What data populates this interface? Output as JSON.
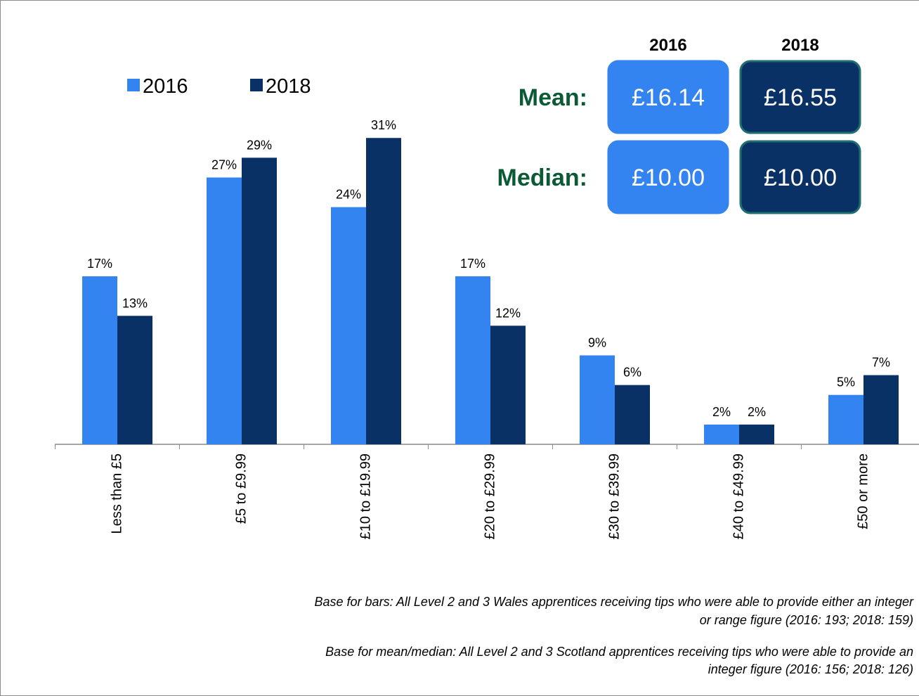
{
  "chart_data": {
    "type": "bar",
    "categories": [
      "Less than £5",
      "£5 to £9.99",
      "£10 to £19.99",
      "£20 to £29.99",
      "£30 to £39.99",
      "£40 to £49.99",
      "£50 or more"
    ],
    "series": [
      {
        "name": "2016",
        "color": "#3383f0",
        "values": [
          17,
          27,
          24,
          17,
          9,
          2,
          5
        ],
        "value_labels": [
          "17%",
          "27%",
          "24%",
          "17%",
          "9%",
          "2%",
          "5%"
        ]
      },
      {
        "name": "2018",
        "color": "#0a3166",
        "values": [
          13,
          29,
          31,
          12,
          6,
          2,
          7
        ],
        "value_labels": [
          "13%",
          "29%",
          "31%",
          "12%",
          "6%",
          "2%",
          "7%"
        ]
      }
    ],
    "ylim": [
      0,
      35
    ],
    "legend": "top-left",
    "summary": {
      "columns": [
        "2016",
        "2018"
      ],
      "rows": [
        {
          "label": "Mean:",
          "values": [
            "£16.14",
            "£16.55"
          ]
        },
        {
          "label": "Median:",
          "values": [
            "£10.00",
            "£10.00"
          ]
        }
      ]
    },
    "footnotes": [
      [
        "Base for bars: All Level 2 and 3 Wales apprentices receiving tips who were able to provide either an integer",
        "or  range figure (2016: 193; 2018: 159)"
      ],
      [
        "Base for mean/median: All Level 2 and 3 Scotland apprentices receiving tips who were able to provide an",
        "integer figure (2016: 156; 2018: 126)"
      ]
    ]
  }
}
